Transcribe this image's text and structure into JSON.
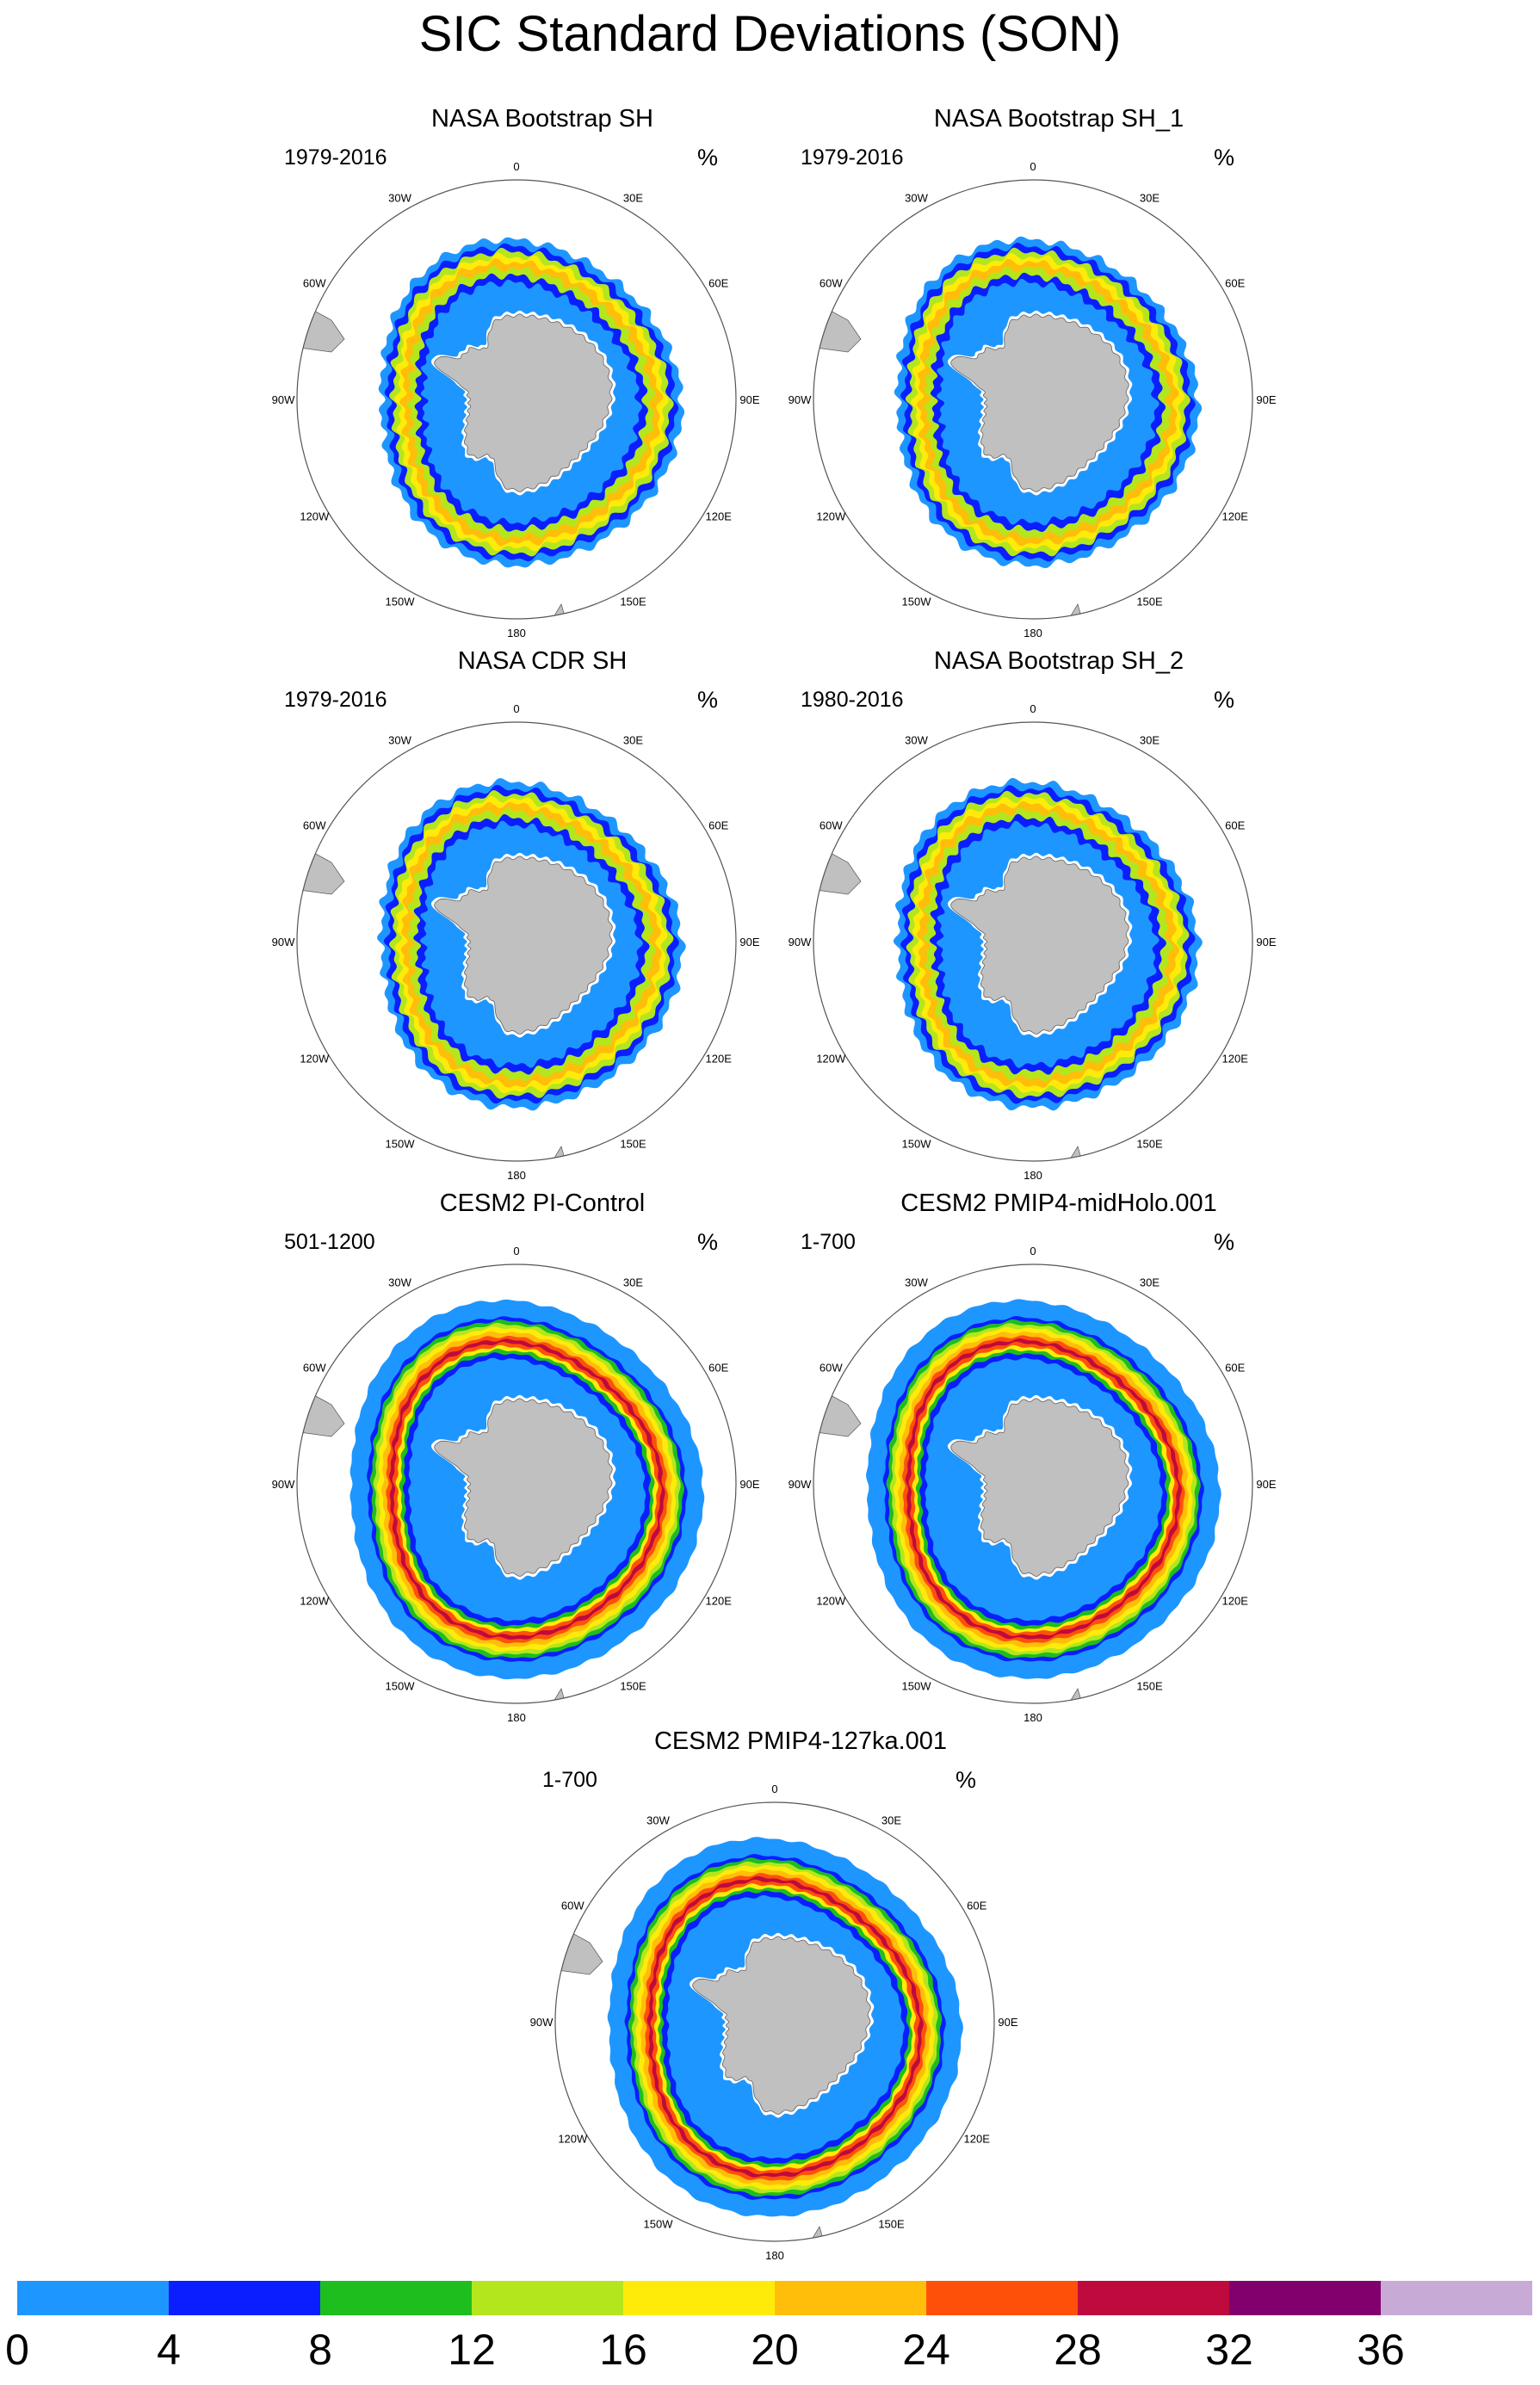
{
  "title": "SIC Standard Deviations (SON)",
  "panels": [
    {
      "title": "NASA Bootstrap SH",
      "period": "1979-2016",
      "unit": "%",
      "kind": "obs",
      "var": 0
    },
    {
      "title": "NASA Bootstrap SH_1",
      "period": "1979-2016",
      "unit": "%",
      "kind": "obs",
      "var": 1
    },
    {
      "title": "NASA CDR SH",
      "period": "1979-2016",
      "unit": "%",
      "kind": "obs",
      "var": 2
    },
    {
      "title": "NASA Bootstrap SH_2",
      "period": "1980-2016",
      "unit": "%",
      "kind": "obs",
      "var": 3
    },
    {
      "title": "CESM2 PI-Control",
      "period": "501-1200",
      "unit": "%",
      "kind": "model",
      "var": 0
    },
    {
      "title": "CESM2 PMIP4-midHolo.001",
      "period": "1-700",
      "unit": "%",
      "kind": "model",
      "var": 1
    },
    {
      "title": "CESM2 PMIP4-127ka.001",
      "period": "1-700",
      "unit": "%",
      "kind": "model",
      "var": 2
    }
  ],
  "longitude_labels": [
    "0",
    "30E",
    "60E",
    "90E",
    "120E",
    "150E",
    "180",
    "150W",
    "120W",
    "90W",
    "60W",
    "30W"
  ],
  "colorbar": {
    "colors": [
      "#1e96ff",
      "#0a1eff",
      "#1ebe1e",
      "#b4e61e",
      "#ffeb0a",
      "#ffbe0a",
      "#ff500a",
      "#be0a3c",
      "#82006e",
      "#c8aad7"
    ],
    "labels": [
      "0",
      "4",
      "8",
      "12",
      "16",
      "20",
      "24",
      "28",
      "32",
      "36"
    ]
  },
  "land_color": "#c0c0c0"
}
